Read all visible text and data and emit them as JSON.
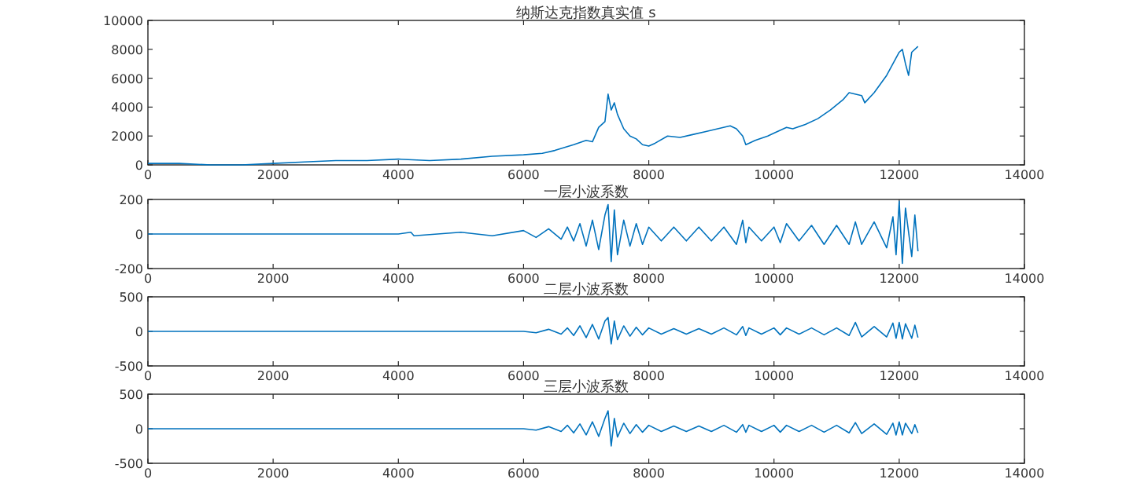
{
  "chart_data": [
    {
      "type": "line",
      "title": "纳斯达克指数真实值 s",
      "x": [
        0,
        500,
        1000,
        1500,
        2000,
        2500,
        3000,
        3500,
        4000,
        4500,
        5000,
        5500,
        6000,
        6300,
        6500,
        6800,
        7000,
        7100,
        7200,
        7300,
        7350,
        7400,
        7450,
        7500,
        7600,
        7700,
        7800,
        7900,
        8000,
        8100,
        8300,
        8500,
        8700,
        8900,
        9100,
        9300,
        9400,
        9500,
        9550,
        9600,
        9700,
        9900,
        10000,
        10200,
        10300,
        10500,
        10700,
        10900,
        11100,
        11200,
        11400,
        11450,
        11600,
        11800,
        11900,
        12000,
        12050,
        12100,
        12150,
        12200,
        12300
      ],
      "series": [
        {
          "color": "#0072bd",
          "values": [
            100,
            100,
            0,
            0,
            100,
            200,
            300,
            300,
            400,
            300,
            400,
            600,
            700,
            800,
            1000,
            1400,
            1700,
            1600,
            2600,
            3000,
            4900,
            3800,
            4300,
            3500,
            2500,
            2000,
            1800,
            1400,
            1300,
            1500,
            2000,
            1900,
            2100,
            2300,
            2500,
            2700,
            2500,
            2000,
            1400,
            1500,
            1700,
            2000,
            2200,
            2600,
            2500,
            2800,
            3200,
            3800,
            4500,
            5000,
            4800,
            4300,
            5000,
            6200,
            7000,
            7800,
            8000,
            7000,
            6200,
            7800,
            8200
          ]
        }
      ],
      "xlim": [
        0,
        14000
      ],
      "xticks": [
        0,
        2000,
        4000,
        6000,
        8000,
        10000,
        12000,
        14000
      ],
      "ylim": [
        0,
        10000
      ],
      "yticks": [
        0,
        2000,
        4000,
        6000,
        8000,
        10000
      ]
    },
    {
      "type": "line",
      "title": "一层小波系数",
      "x": [
        0,
        1000,
        2000,
        3000,
        4000,
        4200,
        4250,
        5000,
        5500,
        6000,
        6200,
        6400,
        6600,
        6700,
        6800,
        6900,
        7000,
        7100,
        7200,
        7300,
        7350,
        7400,
        7450,
        7500,
        7600,
        7700,
        7800,
        7900,
        8000,
        8200,
        8400,
        8600,
        8800,
        9000,
        9200,
        9400,
        9500,
        9550,
        9600,
        9800,
        10000,
        10100,
        10200,
        10400,
        10600,
        10800,
        11000,
        11200,
        11300,
        11400,
        11600,
        11800,
        11900,
        11950,
        12000,
        12050,
        12100,
        12200,
        12250,
        12300
      ],
      "series": [
        {
          "color": "#0072bd",
          "values": [
            0,
            0,
            0,
            0,
            0,
            10,
            -10,
            10,
            -10,
            20,
            -20,
            30,
            -30,
            40,
            -40,
            60,
            -70,
            80,
            -90,
            110,
            170,
            -160,
            140,
            -120,
            80,
            -70,
            60,
            -60,
            40,
            -40,
            40,
            -40,
            40,
            -40,
            40,
            -60,
            80,
            -50,
            40,
            -40,
            40,
            -50,
            60,
            -40,
            50,
            -60,
            50,
            -60,
            70,
            -60,
            70,
            -80,
            100,
            -120,
            190,
            -170,
            150,
            -130,
            110,
            -100
          ]
        }
      ],
      "xlim": [
        0,
        14000
      ],
      "xticks": [
        0,
        2000,
        4000,
        6000,
        8000,
        10000,
        12000,
        14000
      ],
      "ylim": [
        -200,
        200
      ],
      "yticks": [
        -200,
        0,
        200
      ]
    },
    {
      "type": "line",
      "title": "二层小波系数",
      "x": [
        0,
        1000,
        2000,
        3000,
        4000,
        4200,
        4250,
        5000,
        5500,
        6000,
        6200,
        6400,
        6600,
        6700,
        6800,
        6900,
        7000,
        7100,
        7200,
        7300,
        7350,
        7400,
        7450,
        7500,
        7600,
        7700,
        7800,
        7900,
        8000,
        8200,
        8400,
        8600,
        8800,
        9000,
        9200,
        9400,
        9500,
        9550,
        9600,
        9800,
        10000,
        10100,
        10200,
        10400,
        10600,
        10800,
        11000,
        11200,
        11300,
        11400,
        11600,
        11800,
        11900,
        11950,
        12000,
        12050,
        12100,
        12200,
        12250,
        12300
      ],
      "series": [
        {
          "color": "#0072bd",
          "values": [
            0,
            0,
            0,
            0,
            0,
            0,
            0,
            0,
            0,
            0,
            -20,
            30,
            -40,
            50,
            -60,
            80,
            -90,
            100,
            -110,
            150,
            200,
            -180,
            150,
            -120,
            80,
            -70,
            60,
            -50,
            50,
            -40,
            40,
            -40,
            40,
            -40,
            50,
            -50,
            70,
            -60,
            50,
            -40,
            50,
            -50,
            50,
            -40,
            50,
            -50,
            50,
            -60,
            130,
            -80,
            70,
            -80,
            120,
            -100,
            130,
            -110,
            110,
            -100,
            90,
            -90
          ]
        }
      ],
      "xlim": [
        0,
        14000
      ],
      "xticks": [
        0,
        2000,
        4000,
        6000,
        8000,
        10000,
        12000,
        14000
      ],
      "ylim": [
        -500,
        500
      ],
      "yticks": [
        -500,
        0,
        500
      ]
    },
    {
      "type": "line",
      "title": "三层小波系数",
      "x": [
        0,
        1000,
        2000,
        3000,
        4000,
        4200,
        4250,
        5000,
        5500,
        6000,
        6200,
        6400,
        6600,
        6700,
        6800,
        6900,
        7000,
        7100,
        7200,
        7300,
        7350,
        7400,
        7450,
        7500,
        7600,
        7700,
        7800,
        7900,
        8000,
        8200,
        8400,
        8600,
        8800,
        9000,
        9200,
        9400,
        9500,
        9550,
        9600,
        9800,
        10000,
        10100,
        10200,
        10400,
        10600,
        10800,
        11000,
        11200,
        11300,
        11400,
        11600,
        11800,
        11900,
        11950,
        12000,
        12050,
        12100,
        12200,
        12250,
        12300
      ],
      "series": [
        {
          "color": "#0072bd",
          "values": [
            0,
            0,
            0,
            0,
            0,
            0,
            0,
            0,
            0,
            0,
            -20,
            30,
            -40,
            50,
            -60,
            70,
            -90,
            100,
            -110,
            150,
            260,
            -250,
            150,
            -120,
            80,
            -70,
            60,
            -50,
            50,
            -40,
            40,
            -40,
            40,
            -40,
            50,
            -50,
            60,
            -50,
            50,
            -40,
            50,
            -50,
            50,
            -40,
            50,
            -50,
            50,
            -60,
            90,
            -70,
            70,
            -80,
            80,
            -90,
            100,
            -90,
            80,
            -70,
            60,
            -60
          ]
        }
      ],
      "xlim": [
        0,
        14000
      ],
      "xticks": [
        0,
        2000,
        4000,
        6000,
        8000,
        10000,
        12000,
        14000
      ],
      "ylim": [
        -500,
        500
      ],
      "yticks": [
        -500,
        0,
        500
      ]
    }
  ]
}
